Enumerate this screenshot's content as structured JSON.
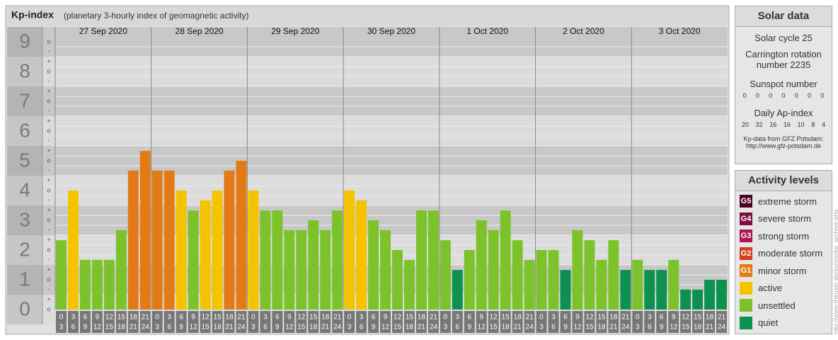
{
  "chart_data": {
    "type": "bar",
    "title": "Kp-index",
    "subtitle": "(planetary 3-hourly index of geomagnetic activity)",
    "ylim": [
      -0.5,
      9.5
    ],
    "yticks": [
      0,
      1,
      2,
      3,
      4,
      5,
      6,
      7,
      8,
      9
    ],
    "subticks": [
      {
        "value": 0,
        "label": "o"
      },
      {
        "value": 0.33,
        "label": "+"
      },
      {
        "value": 0.67,
        "label": "-"
      },
      {
        "value": 1,
        "label": "o"
      },
      {
        "value": 1.33,
        "label": "+"
      },
      {
        "value": 1.67,
        "label": "-"
      },
      {
        "value": 2,
        "label": "o"
      },
      {
        "value": 2.33,
        "label": "+"
      },
      {
        "value": 2.67,
        "label": "-"
      },
      {
        "value": 3,
        "label": "o"
      },
      {
        "value": 3.33,
        "label": "+"
      },
      {
        "value": 3.67,
        "label": "-"
      },
      {
        "value": 4,
        "label": "o"
      },
      {
        "value": 4.33,
        "label": "+"
      },
      {
        "value": 4.67,
        "label": "-"
      },
      {
        "value": 5,
        "label": "o"
      },
      {
        "value": 5.33,
        "label": "+"
      },
      {
        "value": 5.67,
        "label": "-"
      },
      {
        "value": 6,
        "label": "o"
      },
      {
        "value": 6.33,
        "label": "+"
      },
      {
        "value": 6.67,
        "label": "-"
      },
      {
        "value": 7,
        "label": "o"
      },
      {
        "value": 7.33,
        "label": "+"
      },
      {
        "value": 7.67,
        "label": "-"
      },
      {
        "value": 8,
        "label": "o"
      },
      {
        "value": 8.33,
        "label": "+"
      },
      {
        "value": 8.67,
        "label": "-"
      },
      {
        "value": 9,
        "label": "o"
      }
    ],
    "hour_starts": [
      0,
      3,
      6,
      9,
      12,
      15,
      18,
      21
    ],
    "hour_ends": [
      3,
      6,
      9,
      12,
      15,
      18,
      21,
      24
    ],
    "days": [
      {
        "date": "27 Sep 2020",
        "values": [
          2.33,
          4,
          1.67,
          1.67,
          1.67,
          2.67,
          4.67,
          5.33
        ],
        "colors": [
          "#7cc22a",
          "#f5c400",
          "#7cc22a",
          "#7cc22a",
          "#7cc22a",
          "#7cc22a",
          "#e27a15",
          "#e27a15"
        ]
      },
      {
        "date": "28 Sep 2020",
        "values": [
          4.67,
          4.67,
          4,
          3.33,
          3.67,
          4,
          4.67,
          5
        ],
        "colors": [
          "#e27a15",
          "#e27a15",
          "#f5c400",
          "#7cc22a",
          "#f5c400",
          "#f5c400",
          "#e27a15",
          "#e27a15"
        ]
      },
      {
        "date": "29 Sep 2020",
        "values": [
          4,
          3.33,
          3.33,
          2.67,
          2.67,
          3,
          2.67,
          3.33
        ],
        "colors": [
          "#f5c400",
          "#7cc22a",
          "#7cc22a",
          "#7cc22a",
          "#7cc22a",
          "#7cc22a",
          "#7cc22a",
          "#7cc22a"
        ]
      },
      {
        "date": "30 Sep 2020",
        "values": [
          4,
          3.67,
          3,
          2.67,
          2,
          1.67,
          3.33,
          3.33
        ],
        "colors": [
          "#f5c400",
          "#f5c400",
          "#7cc22a",
          "#7cc22a",
          "#7cc22a",
          "#7cc22a",
          "#7cc22a",
          "#7cc22a"
        ]
      },
      {
        "date": "1 Oct 2020",
        "values": [
          2.33,
          1.33,
          2,
          3,
          2.67,
          3.33,
          2.33,
          1.67
        ],
        "colors": [
          "#7cc22a",
          "#0d9150",
          "#7cc22a",
          "#7cc22a",
          "#7cc22a",
          "#7cc22a",
          "#7cc22a",
          "#7cc22a"
        ]
      },
      {
        "date": "2 Oct 2020",
        "values": [
          2,
          2,
          1.33,
          2.67,
          2.33,
          1.67,
          2.33,
          1.33
        ],
        "colors": [
          "#7cc22a",
          "#7cc22a",
          "#0d9150",
          "#7cc22a",
          "#7cc22a",
          "#7cc22a",
          "#7cc22a",
          "#0d9150"
        ]
      },
      {
        "date": "3 Oct 2020",
        "values": [
          1.67,
          1.33,
          1.33,
          1.67,
          0.67,
          0.67,
          1,
          1
        ],
        "colors": [
          "#7cc22a",
          "#0d9150",
          "#0d9150",
          "#7cc22a",
          "#0d9150",
          "#0d9150",
          "#0d9150",
          "#0d9150"
        ]
      }
    ]
  },
  "solar": {
    "title": "Solar data",
    "cycle": "Solar cycle 25",
    "carrington": "Carrington rotation number 2235",
    "sunspot_title": "Sunspot number",
    "sunspot": [
      0,
      0,
      0,
      0,
      0,
      0,
      0
    ],
    "ap_title": "Daily Ap-index",
    "ap": [
      20,
      32,
      16,
      16,
      10,
      8,
      4
    ],
    "source": "Kp-data from GFZ Potsdam:",
    "source_url": "http://www.gfz-potsdam.de"
  },
  "activity": {
    "title": "Activity levels",
    "levels": [
      {
        "badge": "G5",
        "name": "extreme storm",
        "color": "#4d0022"
      },
      {
        "badge": "G4",
        "name": "severe storm",
        "color": "#7a0e40"
      },
      {
        "badge": "G3",
        "name": "strong storm",
        "color": "#b0155a"
      },
      {
        "badge": "G2",
        "name": "moderate storm",
        "color": "#d43e1c"
      },
      {
        "badge": "G1",
        "name": "minor storm",
        "color": "#e27a15"
      },
      {
        "name": "active",
        "color": "#f5c400"
      },
      {
        "name": "unsettled",
        "color": "#7cc22a"
      },
      {
        "name": "quiet",
        "color": "#0d9150"
      }
    ]
  },
  "side_url": "http://www.theuser.de/sonne/kp_archive.php"
}
